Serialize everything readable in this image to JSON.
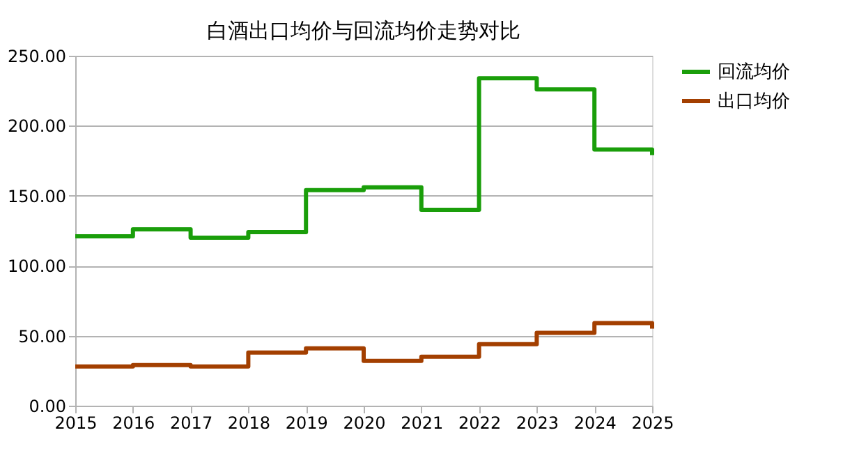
{
  "chart_data": {
    "type": "step",
    "title": "白酒出口均价与回流均价走势对比",
    "x": [
      2015,
      2016,
      2017,
      2018,
      2019,
      2020,
      2021,
      2022,
      2023,
      2024,
      2025
    ],
    "series": [
      {
        "name": "回流均价",
        "color": "#1a9e0a",
        "values": [
          121,
          126,
          120,
          124,
          154,
          156,
          140,
          234,
          226,
          183,
          179
        ]
      },
      {
        "name": "出口均价",
        "color": "#a33f00",
        "values": [
          28,
          29,
          28,
          38,
          41,
          32,
          35,
          44,
          52,
          59,
          55
        ]
      }
    ],
    "xlim": [
      2015,
      2025
    ],
    "xticks": [
      2015,
      2016,
      2017,
      2018,
      2019,
      2020,
      2021,
      2022,
      2023,
      2024,
      2025
    ],
    "ylim": [
      0,
      250
    ],
    "yticks": [
      {
        "value": 0,
        "label": "0.00"
      },
      {
        "value": 50,
        "label": "50.00"
      },
      {
        "value": 100,
        "label": "100.00"
      },
      {
        "value": 150,
        "label": "150.00"
      },
      {
        "value": 200,
        "label": "200.00"
      },
      {
        "value": 250,
        "label": "250.00"
      }
    ],
    "grid": "y",
    "legend": "right",
    "line_style": "solid",
    "marker": "none"
  }
}
